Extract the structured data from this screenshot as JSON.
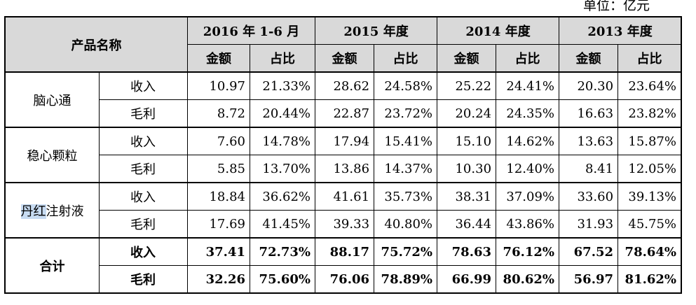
{
  "unit_label": "单位：亿元",
  "header": {
    "product_name": "产品名称",
    "periods": [
      "2016 年 1-6 月",
      "2015 年度",
      "2014 年度",
      "2013 年度"
    ],
    "amount": "金额",
    "ratio": "占比"
  },
  "products": [
    {
      "name_pre": "",
      "name_hl": "",
      "name_post": "脑心通",
      "rows": [
        {
          "metric": "收入",
          "cells": [
            "10.97",
            "21.33%",
            "28.62",
            "24.58%",
            "25.22",
            "24.41%",
            "20.30",
            "23.64%"
          ]
        },
        {
          "metric": "毛利",
          "cells": [
            "8.72",
            "20.44%",
            "22.87",
            "23.72%",
            "20.24",
            "24.35%",
            "16.63",
            "23.82%"
          ]
        }
      ]
    },
    {
      "name_pre": "",
      "name_hl": "",
      "name_post": "稳心颗粒",
      "rows": [
        {
          "metric": "收入",
          "cells": [
            "7.60",
            "14.78%",
            "17.94",
            "15.41%",
            "15.10",
            "14.62%",
            "13.63",
            "15.87%"
          ]
        },
        {
          "metric": "毛利",
          "cells": [
            "5.85",
            "13.70%",
            "13.86",
            "14.37%",
            "10.30",
            "12.40%",
            "8.41",
            "12.05%"
          ]
        }
      ]
    },
    {
      "name_pre": "",
      "name_hl": "丹红",
      "name_post": "注射液",
      "rows": [
        {
          "metric": "收入",
          "cells": [
            "18.84",
            "36.62%",
            "41.61",
            "35.73%",
            "38.31",
            "37.09%",
            "33.60",
            "39.13%"
          ]
        },
        {
          "metric": "毛利",
          "cells": [
            "17.69",
            "41.45%",
            "39.33",
            "40.80%",
            "36.44",
            "43.86%",
            "31.93",
            "45.75%"
          ]
        }
      ]
    },
    {
      "name_pre": "",
      "name_hl": "",
      "name_post": "合计",
      "rows": [
        {
          "metric": "收入",
          "cells": [
            "37.41",
            "72.73%",
            "88.17",
            "75.72%",
            "78.63",
            "76.12%",
            "67.52",
            "78.64%"
          ]
        },
        {
          "metric": "毛利",
          "cells": [
            "32.26",
            "75.60%",
            "76.06",
            "78.89%",
            "66.99",
            "80.62%",
            "56.97",
            "81.62%"
          ]
        }
      ]
    }
  ]
}
